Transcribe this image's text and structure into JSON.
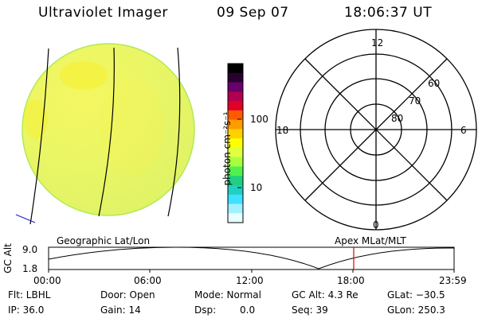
{
  "header": {
    "instrument": "Ultraviolet Imager",
    "date": "09 Sep 07",
    "time": "18:06:37 UT"
  },
  "colorbar": {
    "unit_label": "photon cm⁻²s⁻¹",
    "ticks": [
      "100",
      "10"
    ],
    "colors": [
      "#000000",
      "#2a0030",
      "#6a006a",
      "#b00050",
      "#e0002a",
      "#ff5a00",
      "#ff9c00",
      "#ffd000",
      "#ffff00",
      "#e0ff40",
      "#a8ff40",
      "#50f050",
      "#20d080",
      "#20d0c0",
      "#40e0ff",
      "#a0f0ff",
      "#e8ffff"
    ]
  },
  "polar": {
    "mlt_labels": {
      "top": "12",
      "left": "18",
      "right": "6",
      "bottom": "0"
    },
    "lat_labels": [
      "60",
      "70",
      "80"
    ]
  },
  "timeline": {
    "left_label": "Geographic Lat/Lon",
    "right_label": "Apex MLat/MLT",
    "y_axis": "GC Alt",
    "y_ticks": [
      "9.0",
      "1.8"
    ],
    "x_ticks": [
      "00:00",
      "06:00",
      "12:00",
      "18:00",
      "23:59"
    ],
    "marker_time": "18:06:37"
  },
  "status": {
    "flt": "Flt: LBHL",
    "ip": "IP: 36.0",
    "door": "Door: Open",
    "gain": "Gain: 14",
    "mode": "Mode: Normal",
    "dsp_label": "Dsp:",
    "dsp_value": "0.0",
    "gc_alt": "GC Alt: 4.3 Re",
    "seq": "Seq: 39",
    "glat": "GLat: −30.5",
    "glon": "GLon: 250.3"
  }
}
